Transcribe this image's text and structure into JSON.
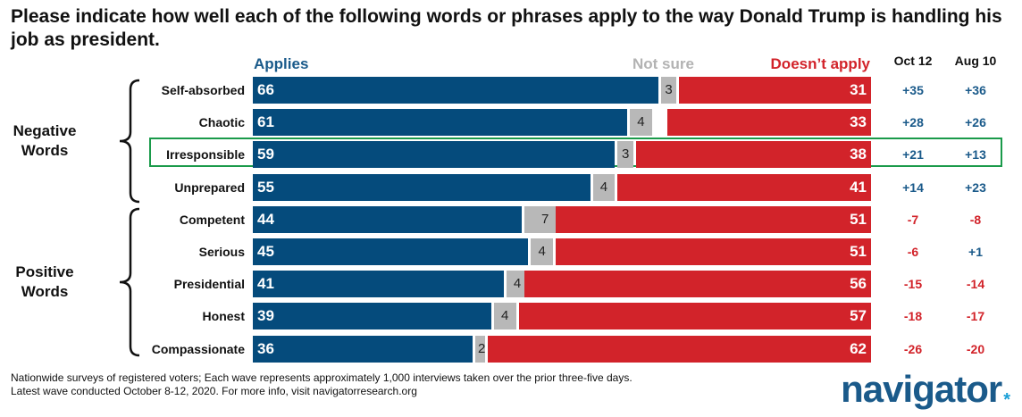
{
  "title": "Please indicate how well each of the following words or phrases apply to the way Donald Trump is handling his job as president.",
  "headers": {
    "applies": "Applies",
    "not_sure": "Not sure",
    "doesnt_apply": "Doesn’t apply",
    "wave1": "Oct 12",
    "wave2": "Aug 10"
  },
  "groups": {
    "negative": [
      "Negative",
      "Words"
    ],
    "positive": [
      "Positive",
      "Words"
    ]
  },
  "highlighted_row": "Irresponsible",
  "chart_data": {
    "type": "bar",
    "stacked": true,
    "orientation": "horizontal",
    "categories": [
      "Self-absorbed",
      "Chaotic",
      "Irresponsible",
      "Unprepared",
      "Competent",
      "Serious",
      "Presidential",
      "Honest",
      "Compassionate"
    ],
    "series": [
      {
        "name": "Applies",
        "color": "#054b7c",
        "values": [
          66,
          61,
          59,
          55,
          44,
          45,
          41,
          39,
          36
        ]
      },
      {
        "name": "Not sure",
        "color": "#b8b8b8",
        "values": [
          3,
          4,
          3,
          4,
          7,
          4,
          4,
          4,
          2
        ]
      },
      {
        "name": "Doesn’t apply",
        "color": "#d2232a",
        "values": [
          31,
          33,
          38,
          41,
          51,
          51,
          56,
          57,
          62
        ]
      }
    ],
    "net_columns": [
      {
        "name": "Oct 12",
        "values": [
          "+35",
          "+28",
          "+21",
          "+14",
          "-7",
          "-6",
          "-15",
          "-18",
          "-26"
        ]
      },
      {
        "name": "Aug 10",
        "values": [
          "+36",
          "+26",
          "+13",
          "+23",
          "-8",
          "+1",
          "-14",
          "-17",
          "-20"
        ]
      }
    ]
  },
  "footnotes": [
    "Nationwide surveys of registered voters; Each wave represents approximately 1,000 interviews taken over the prior three-five days.",
    "Latest wave conducted October 8-12, 2020. For more info, visit navigatorresearch.org"
  ],
  "logo": "navigator",
  "logo_mark": "*",
  "colors": {
    "applies": "#054b7c",
    "not_sure": "#b8b8b8",
    "doesnt_apply": "#d2232a",
    "net_positive": "#1a5a8a",
    "net_negative": "#d2232a",
    "highlight": "#1a9a4a"
  }
}
